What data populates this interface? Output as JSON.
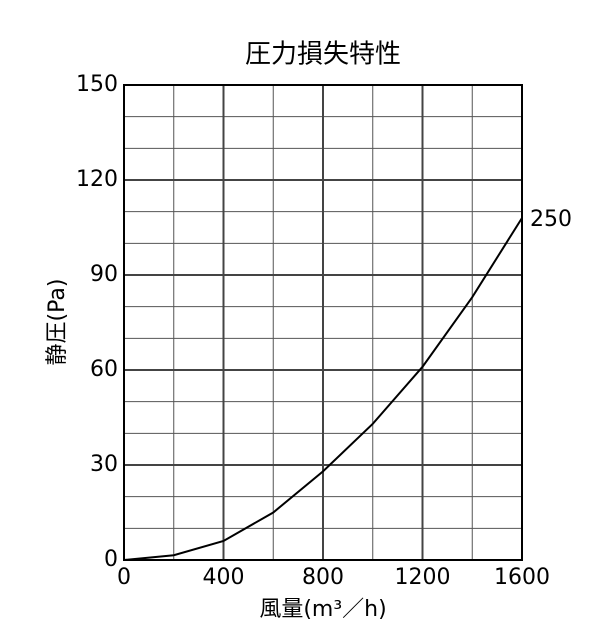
{
  "chart_data": {
    "type": "line",
    "title": "圧力損失特性",
    "x_label": "風量(m³／h)",
    "y_label": "静圧(Pa)",
    "x": [
      0,
      200,
      400,
      600,
      800,
      1000,
      1200,
      1400,
      1600
    ],
    "series": [
      {
        "name": "250",
        "color": "#000000",
        "values": [
          0,
          1.5,
          6,
          15,
          28,
          43,
          61,
          83,
          108
        ]
      }
    ],
    "xlim": [
      0,
      1600
    ],
    "xticks": [
      0,
      400,
      800,
      1200,
      1600
    ],
    "ylim": [
      0,
      150
    ],
    "yticks": [
      0,
      30,
      60,
      90,
      120,
      150
    ],
    "grid": true
  }
}
